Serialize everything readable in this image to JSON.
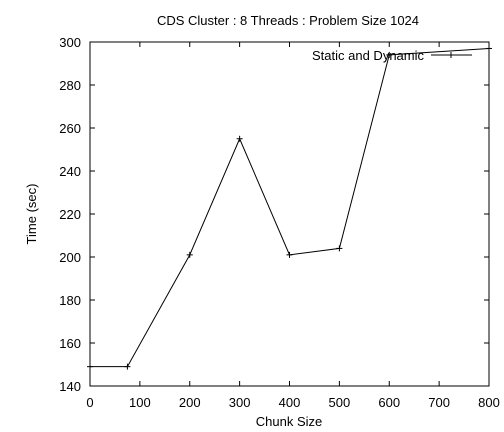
{
  "chart_data": {
    "type": "line",
    "title": "CDS Cluster : 8 Threads : Problem Size 1024",
    "xlabel": "Chunk Size",
    "ylabel": "Time (sec)",
    "xlim": [
      0,
      800
    ],
    "ylim": [
      140,
      300
    ],
    "xticks": [
      0,
      100,
      200,
      300,
      400,
      500,
      600,
      700,
      800
    ],
    "yticks": [
      140,
      160,
      180,
      200,
      220,
      240,
      260,
      280,
      300
    ],
    "grid": false,
    "legend_position": "top-right",
    "series": [
      {
        "name": "Static and Dynamic",
        "x": [
          0,
          75,
          200,
          300,
          400,
          500,
          600,
          800
        ],
        "y": [
          149,
          149,
          201,
          255,
          201,
          204,
          294,
          297
        ]
      }
    ]
  }
}
